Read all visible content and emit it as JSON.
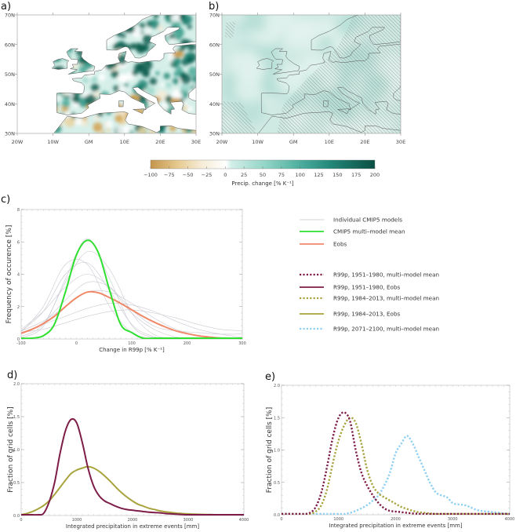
{
  "panels": {
    "a": "a)",
    "b": "b)",
    "c": "c)",
    "d": "d)",
    "e": "e)"
  },
  "maps": {
    "lat_labels": [
      "70N",
      "60N",
      "50N",
      "40N",
      "30N"
    ],
    "lon_labels": [
      "20W",
      "10W",
      "GM",
      "10E",
      "20E",
      "30E"
    ]
  },
  "colorbar": {
    "title": "Precip. change [% K⁻¹]",
    "ticks": [
      "−100",
      "−75",
      "−50",
      "−25",
      "0",
      "25",
      "50",
      "75",
      "100",
      "125",
      "150",
      "175",
      "200"
    ],
    "range": [
      -100,
      200
    ],
    "colors": [
      "#c4944a",
      "#e6c98f",
      "#f5ead2",
      "#ffffff",
      "#d2eee8",
      "#8fd3c4",
      "#4fb0a0",
      "#23887a",
      "#0a4f43"
    ]
  },
  "legend": [
    {
      "label": "Individual CMIP5 models",
      "color": "#c9c9d2",
      "style": "solid"
    },
    {
      "label": "CMIP5 multi–model mean",
      "color": "#2fe02f",
      "style": "solid"
    },
    {
      "label": "Eobs",
      "color": "#f08868",
      "style": "solid"
    },
    {
      "label": "R99p, 1951–1980, multi–model mean",
      "color": "#7e1c48",
      "style": "dotted"
    },
    {
      "label": "R99p, 1951–1980, Eobs",
      "color": "#7e1c48",
      "style": "solid"
    },
    {
      "label": "R99p, 1984–2013, multi–model mean",
      "color": "#a8a33c",
      "style": "dotted"
    },
    {
      "label": "R99p, 1984–2013, Eobs",
      "color": "#a8a33c",
      "style": "solid"
    },
    {
      "label": "R99p, 2071–2100, multi–model mean",
      "color": "#8fd0f2",
      "style": "dotted"
    }
  ],
  "chart_data": [
    {
      "id": "c",
      "type": "line",
      "xlabel": "Change in R99p [% K⁻¹]",
      "ylabel": "Frequency of occurence [%]",
      "xlim": [
        -100,
        300
      ],
      "ylim": [
        0,
        8
      ],
      "xticks": [
        -100,
        0,
        100,
        200,
        300
      ],
      "yticks": [
        0,
        2,
        4,
        6,
        8
      ],
      "x": [
        -100,
        -80,
        -60,
        -40,
        -20,
        0,
        20,
        40,
        60,
        80,
        100,
        120,
        140,
        160,
        180,
        200,
        220,
        240,
        260,
        280,
        300
      ],
      "models_x": [
        -100,
        -60,
        -20,
        20,
        60,
        100,
        140,
        180,
        220,
        260,
        300
      ],
      "models": [
        [
          0.08,
          0.78,
          3.7,
          6.2,
          3.7,
          0.84,
          0.08,
          0,
          0,
          0,
          0
        ],
        [
          0.16,
          0.9,
          3.5,
          5.4,
          4.3,
          1.6,
          0.28,
          0.02,
          0,
          0,
          0
        ],
        [
          0.5,
          1.7,
          4.0,
          4.7,
          3.0,
          0.9,
          0.14,
          0.01,
          0,
          0,
          0
        ],
        [
          0.6,
          1.7,
          3.2,
          4.0,
          3.2,
          1.6,
          0.6,
          0.12,
          0.02,
          0,
          0
        ],
        [
          0.5,
          1.1,
          2.0,
          2.9,
          2.9,
          2.2,
          1.3,
          0.6,
          0.2,
          0.05,
          0.01
        ],
        [
          0.4,
          0.9,
          1.4,
          1.9,
          2.2,
          2.1,
          1.7,
          1.1,
          0.6,
          0.3,
          0.1
        ],
        [
          0.4,
          2.0,
          4.6,
          4.6,
          2.0,
          0.4,
          0.03,
          0,
          0,
          0,
          0
        ],
        [
          0.3,
          1.0,
          2.4,
          3.5,
          3.2,
          1.8,
          0.8,
          0.5,
          0.4,
          0.3,
          0.3
        ],
        [
          0.4,
          0.6,
          1.0,
          1.4,
          1.7,
          1.8,
          1.6,
          1.3,
          0.9,
          0.6,
          0.5
        ]
      ],
      "series": [
        {
          "name": "Eobs",
          "color": "#f08868",
          "style": "solid",
          "values": [
            0.35,
            0.6,
            0.95,
            1.4,
            2.0,
            2.55,
            2.9,
            2.85,
            2.55,
            2.2,
            1.8,
            1.4,
            1.05,
            0.75,
            0.5,
            0.33,
            0.2,
            0.12,
            0.06,
            0.03,
            0.01
          ]
        },
        {
          "name": "CMIP5 multi-model mean",
          "color": "#2fe02f",
          "style": "solid",
          "values": [
            0,
            0.05,
            0.2,
            0.9,
            2.9,
            5.2,
            6.1,
            5.3,
            3.0,
            0.9,
            0.4,
            0.05,
            0,
            0,
            0,
            0,
            0,
            0,
            0,
            0,
            0
          ]
        }
      ]
    },
    {
      "id": "d",
      "type": "line",
      "xlabel": "Integrated precipitation in extreme events [mm]",
      "ylabel": "Fraction of grid cells [%]",
      "xlim": [
        0,
        4000
      ],
      "ylim": [
        0,
        2
      ],
      "xticks": [
        0,
        1000,
        2000,
        3000,
        4000
      ],
      "yticks": [
        "0.0",
        "0.5",
        "1.0",
        "1.5",
        "2.0"
      ],
      "x_step": 100,
      "series": [
        {
          "name": "R99p, 1984-2013, Eobs",
          "color": "#a8a33c",
          "style": "solid",
          "values": [
            0.01,
            0.03,
            0.06,
            0.1,
            0.15,
            0.22,
            0.32,
            0.43,
            0.54,
            0.64,
            0.69,
            0.72,
            0.74,
            0.72,
            0.67,
            0.6,
            0.52,
            0.43,
            0.35,
            0.28,
            0.22,
            0.17,
            0.14,
            0.11,
            0.09,
            0.07,
            0.055,
            0.045,
            0.035,
            0.03,
            0.025,
            0.02,
            0.018,
            0.016,
            0.014,
            0.012,
            0.01,
            0.01,
            0.01,
            0.01,
            0.01
          ]
        },
        {
          "name": "R99p, 1951-1980, Eobs",
          "color": "#7e1c48",
          "style": "solid",
          "values": [
            0,
            0,
            0,
            0.005,
            0.03,
            0.2,
            0.5,
            0.95,
            1.3,
            1.46,
            1.4,
            1.1,
            0.72,
            0.45,
            0.3,
            0.22,
            0.18,
            0.14,
            0.11,
            0.09,
            0.08,
            0.07,
            0.06,
            0.05,
            0.045,
            0.04,
            0.03,
            0.025,
            0.02,
            0.015,
            0.01,
            0.008,
            0.006,
            0.005,
            0.004,
            0.003,
            0.002,
            0.002,
            0.001,
            0.001,
            0
          ]
        }
      ]
    },
    {
      "id": "e",
      "type": "line",
      "xlabel": "Integrated precipitation in extreme events [mm]",
      "ylabel": "Fraction of grid cells [%]",
      "xlim": [
        0,
        4000
      ],
      "ylim": [
        0,
        2
      ],
      "xticks": [
        0,
        1000,
        2000,
        3000,
        4000
      ],
      "yticks": [
        "0.0",
        "0.5",
        "1.0",
        "1.5",
        "2.0"
      ],
      "x_step": 100,
      "series": [
        {
          "name": "R99p, 2071-2100, multi-model mean",
          "color": "#8fd0f2",
          "style": "dotted",
          "values": [
            0,
            0,
            0,
            0,
            0,
            0,
            0,
            0,
            0,
            0,
            0.01,
            0.01,
            0.03,
            0.06,
            0.1,
            0.15,
            0.22,
            0.3,
            0.45,
            0.65,
            0.95,
            1.1,
            1.22,
            1.1,
            0.9,
            0.7,
            0.5,
            0.35,
            0.3,
            0.27,
            0.18,
            0.16,
            0.15,
            0.12,
            0.08,
            0.06,
            0.05,
            0.04,
            0.03,
            0.02,
            0.01
          ]
        },
        {
          "name": "R99p, 1984-2013, multi-model mean",
          "color": "#a8a33c",
          "style": "dotted",
          "values": [
            0,
            0,
            0,
            0,
            0,
            0.01,
            0.05,
            0.15,
            0.4,
            0.8,
            1.15,
            1.38,
            1.5,
            1.42,
            1.1,
            0.7,
            0.45,
            0.33,
            0.27,
            0.22,
            0.17,
            0.12,
            0.09,
            0.06,
            0.04,
            0.03,
            0.02,
            0.01,
            0.005,
            0,
            0,
            0,
            0,
            0,
            0,
            0,
            0,
            0,
            0,
            0,
            0
          ]
        },
        {
          "name": "R99p, 1951-1980, multi-model mean",
          "color": "#7e1c48",
          "style": "dotted",
          "values": [
            0,
            0,
            0,
            0,
            0.005,
            0.03,
            0.12,
            0.35,
            0.75,
            1.2,
            1.5,
            1.58,
            1.45,
            1.0,
            0.65,
            0.45,
            0.3,
            0.18,
            0.1,
            0.06,
            0.05,
            0.04,
            0.03,
            0.02,
            0.015,
            0.01,
            0.005,
            0,
            0,
            0,
            0,
            0,
            0,
            0,
            0,
            0,
            0,
            0,
            0,
            0,
            0
          ]
        }
      ]
    }
  ]
}
